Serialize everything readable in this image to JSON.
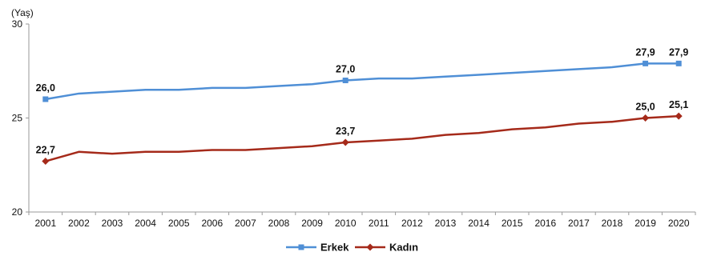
{
  "chart_data": {
    "type": "line",
    "title": "",
    "ylabel": "(Yaş)",
    "xlabel": "",
    "ylim": [
      20,
      30
    ],
    "yticks": [
      "20",
      "25",
      "30"
    ],
    "categories": [
      "2001",
      "2002",
      "2003",
      "2004",
      "2005",
      "2006",
      "2007",
      "2008",
      "2009",
      "2010",
      "2011",
      "2012",
      "2013",
      "2014",
      "2015",
      "2016",
      "2017",
      "2018",
      "2019",
      "2020"
    ],
    "series": [
      {
        "name": "Erkek",
        "color": "#4f8fd6",
        "marker": "square",
        "values": [
          26.0,
          26.3,
          26.4,
          26.5,
          26.5,
          26.6,
          26.6,
          26.7,
          26.8,
          27.0,
          27.1,
          27.1,
          27.2,
          27.3,
          27.4,
          27.5,
          27.6,
          27.7,
          27.9,
          27.9
        ],
        "labels": [
          {
            "index": 0,
            "text": "26,0"
          },
          {
            "index": 9,
            "text": "27,0"
          },
          {
            "index": 18,
            "text": "27,9"
          },
          {
            "index": 19,
            "text": "27,9"
          }
        ]
      },
      {
        "name": "Kadın",
        "color": "#a52a1a",
        "marker": "diamond",
        "values": [
          22.7,
          23.2,
          23.1,
          23.2,
          23.2,
          23.3,
          23.3,
          23.4,
          23.5,
          23.7,
          23.8,
          23.9,
          24.1,
          24.2,
          24.4,
          24.5,
          24.7,
          24.8,
          25.0,
          25.1
        ],
        "labels": [
          {
            "index": 0,
            "text": "22,7"
          },
          {
            "index": 9,
            "text": "23,7"
          },
          {
            "index": 18,
            "text": "25,0"
          },
          {
            "index": 19,
            "text": "25,1"
          }
        ]
      }
    ],
    "grid": false,
    "legend": "bottom-center"
  }
}
